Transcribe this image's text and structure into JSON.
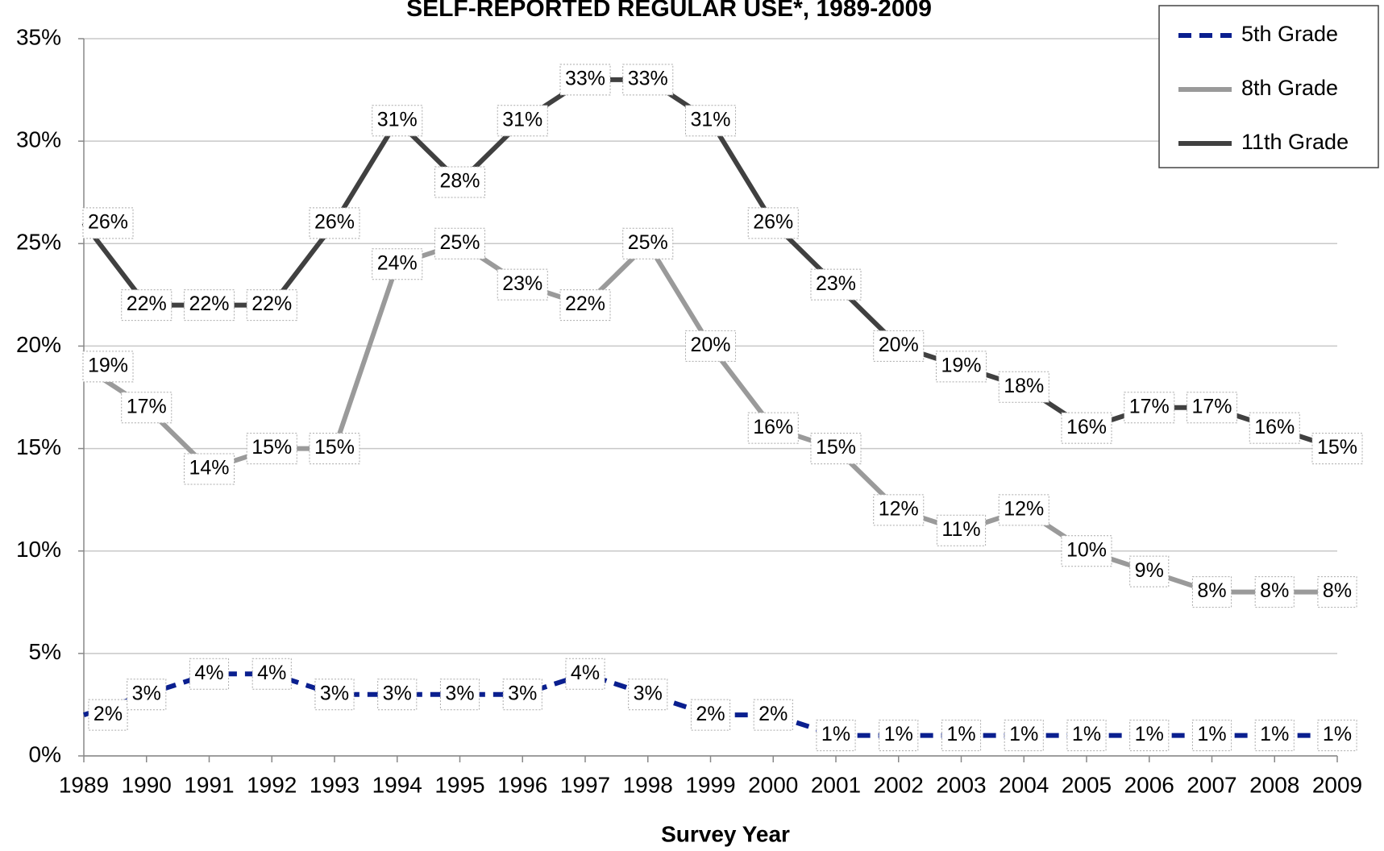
{
  "chart_data": {
    "type": "line",
    "title": "SELF-REPORTED REGULAR USE*, 1989-2009",
    "x_label": "Survey Year",
    "categories": [
      "1989",
      "1990",
      "1991",
      "1992",
      "1993",
      "1994",
      "1995",
      "1996",
      "1997",
      "1998",
      "1999",
      "2000",
      "2001",
      "2002",
      "2003",
      "2004",
      "2005",
      "2006",
      "2007",
      "2008",
      "2009"
    ],
    "series": [
      {
        "name": "5th Grade",
        "color": "#0a1f8f",
        "dashed": true,
        "values": [
          2,
          3,
          4,
          4,
          3,
          3,
          3,
          3,
          4,
          3,
          2,
          2,
          1,
          1,
          1,
          1,
          1,
          1,
          1,
          1,
          1
        ],
        "value_labels": [
          "2%",
          "3%",
          "4%",
          "4%",
          "3%",
          "3%",
          "3%",
          "3%",
          "4%",
          "3%",
          "2%",
          "2%",
          "1%",
          "1%",
          "1%",
          "1%",
          "1%",
          "1%",
          "1%",
          "1%",
          "1%"
        ]
      },
      {
        "name": "8th Grade",
        "color": "#9a9a9a",
        "dashed": false,
        "values": [
          19,
          17,
          14,
          15,
          15,
          24,
          25,
          23,
          22,
          25,
          20,
          16,
          15,
          12,
          11,
          12,
          10,
          9,
          8,
          8,
          8
        ],
        "value_labels": [
          "19%",
          "17%",
          "14%",
          "15%",
          "15%",
          "24%",
          "25%",
          "23%",
          "22%",
          "25%",
          "20%",
          "16%",
          "15%",
          "12%",
          "11%",
          "12%",
          "10%",
          "9%",
          "8%",
          "8%",
          "8%"
        ]
      },
      {
        "name": "11th Grade",
        "color": "#404040",
        "dashed": false,
        "values": [
          26,
          22,
          22,
          22,
          26,
          31,
          28,
          31,
          33,
          33,
          31,
          26,
          23,
          20,
          19,
          18,
          16,
          17,
          17,
          16,
          15
        ],
        "value_labels": [
          "26%",
          "22%",
          "22%",
          "22%",
          "26%",
          "31%",
          "28%",
          "31%",
          "33%",
          "33%",
          "31%",
          "26%",
          "23%",
          "20%",
          "19%",
          "18%",
          "16%",
          "17%",
          "17%",
          "16%",
          "15%"
        ]
      }
    ],
    "ylim": [
      0,
      35
    ],
    "yticks": [
      {
        "value": 0,
        "label": "0%"
      },
      {
        "value": 5,
        "label": "5%"
      },
      {
        "value": 10,
        "label": "10%"
      },
      {
        "value": 15,
        "label": "15%"
      },
      {
        "value": 20,
        "label": "20%"
      },
      {
        "value": 25,
        "label": "25%"
      },
      {
        "value": 30,
        "label": "30%"
      },
      {
        "value": 35,
        "label": "35%"
      }
    ],
    "grid": true,
    "legend": "top-right"
  }
}
